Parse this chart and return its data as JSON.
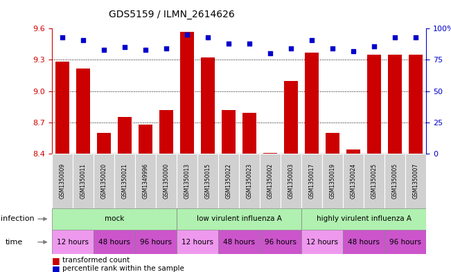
{
  "title": "GDS5159 / ILMN_2614626",
  "samples": [
    "GSM1350009",
    "GSM1350011",
    "GSM1350020",
    "GSM1350021",
    "GSM1349996",
    "GSM1350000",
    "GSM1350013",
    "GSM1350015",
    "GSM1350022",
    "GSM1350023",
    "GSM1350002",
    "GSM1350003",
    "GSM1350017",
    "GSM1350019",
    "GSM1350024",
    "GSM1350025",
    "GSM1350005",
    "GSM1350007"
  ],
  "transformed_counts": [
    9.28,
    9.22,
    8.6,
    8.75,
    8.68,
    8.82,
    9.57,
    9.32,
    8.82,
    8.79,
    8.41,
    9.1,
    9.37,
    8.6,
    8.44,
    9.35,
    9.35,
    9.35
  ],
  "percentile_ranks": [
    93,
    91,
    83,
    85,
    83,
    84,
    95,
    93,
    88,
    88,
    80,
    84,
    91,
    84,
    82,
    86,
    93,
    93
  ],
  "ylim_left": [
    8.4,
    9.6
  ],
  "ylim_right": [
    0,
    100
  ],
  "yticks_left": [
    8.4,
    8.7,
    9.0,
    9.3,
    9.6
  ],
  "yticks_right": [
    0,
    25,
    50,
    75,
    100
  ],
  "bar_color": "#cc0000",
  "dot_color": "#0000cc",
  "sample_box_color": "#d0d0d0",
  "infection_color": "#b0f0b0",
  "time_color_light": "#ee99ee",
  "time_color_dark": "#cc55cc",
  "grid_linestyle": ":",
  "grid_linewidth": 0.7,
  "inf_labels": [
    "mock",
    "low virulent influenza A",
    "highly virulent influenza A"
  ],
  "inf_starts": [
    0,
    6,
    12
  ],
  "inf_ends": [
    6,
    12,
    18
  ],
  "time_labels": [
    "12 hours",
    "48 hours",
    "96 hours",
    "12 hours",
    "48 hours",
    "96 hours",
    "12 hours",
    "48 hours",
    "96 hours"
  ],
  "time_starts": [
    0,
    2,
    4,
    6,
    8,
    10,
    12,
    14,
    16
  ],
  "time_ends": [
    2,
    4,
    6,
    8,
    10,
    12,
    14,
    16,
    18
  ],
  "time_colors": [
    "#ee99ee",
    "#cc55cc",
    "#cc55cc",
    "#ee99ee",
    "#cc55cc",
    "#cc55cc",
    "#ee99ee",
    "#cc55cc",
    "#cc55cc"
  ]
}
